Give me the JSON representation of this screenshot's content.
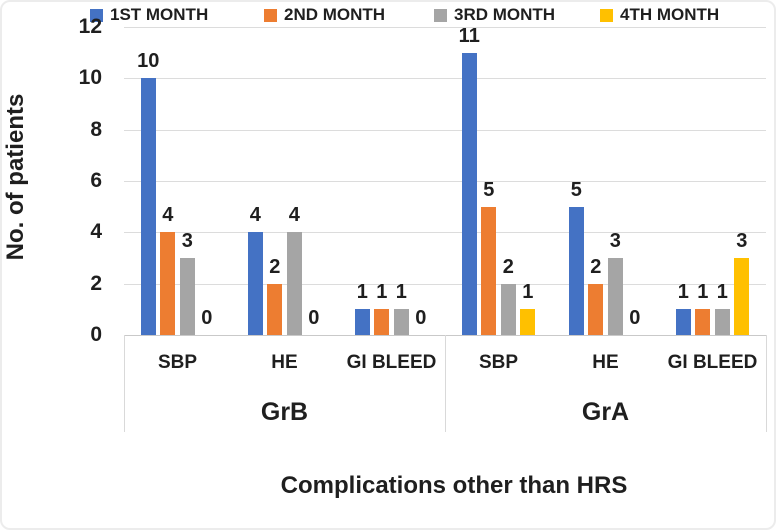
{
  "chart_data": {
    "type": "bar",
    "title": "",
    "xlabel": "Complications other than HRS",
    "ylabel": "No. of patients",
    "ylim": [
      0,
      12
    ],
    "yticks": [
      0,
      2,
      4,
      6,
      8,
      10,
      12
    ],
    "grid": true,
    "legend_position": "top",
    "group_labels": [
      "GrB",
      "GrA"
    ],
    "categories": [
      "SBP",
      "HE",
      "GI BLEED",
      "SBP",
      "HE",
      "GI BLEED"
    ],
    "category_groups": [
      "GrB",
      "GrB",
      "GrB",
      "GrA",
      "GrA",
      "GrA"
    ],
    "series": [
      {
        "name": "1ST MONTH",
        "color": "#4472C4",
        "values": [
          10,
          4,
          1,
          11,
          5,
          1
        ]
      },
      {
        "name": "2ND MONTH",
        "color": "#ED7D31",
        "values": [
          4,
          2,
          1,
          5,
          2,
          1
        ]
      },
      {
        "name": "3RD MONTH",
        "color": "#A5A5A5",
        "values": [
          3,
          4,
          1,
          2,
          3,
          1
        ]
      },
      {
        "name": "4TH MONTH",
        "color": "#FFC000",
        "values": [
          0,
          0,
          0,
          1,
          0,
          3
        ]
      }
    ],
    "data_labels_shown": true
  }
}
